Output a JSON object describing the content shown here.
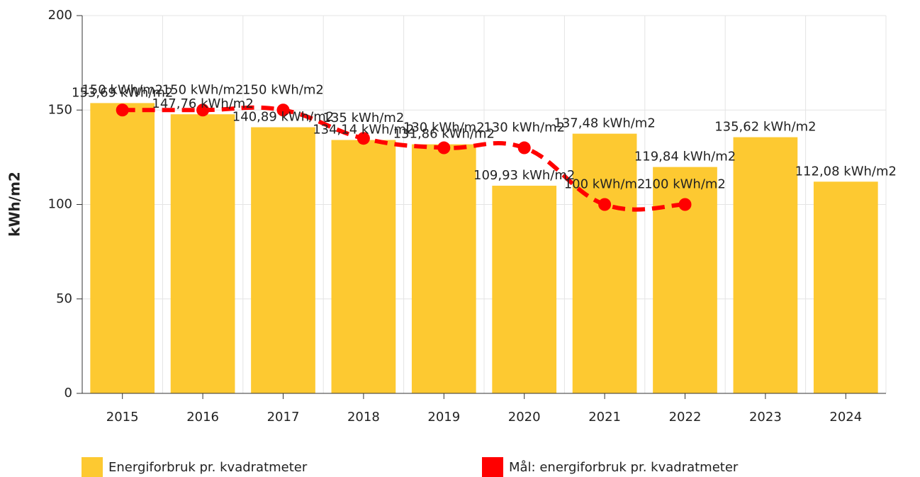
{
  "chart_data": {
    "type": "bar",
    "y_label": "kWh/m2",
    "categories": [
      "2015",
      "2016",
      "2017",
      "2018",
      "2019",
      "2020",
      "2021",
      "2022",
      "2023",
      "2024"
    ],
    "series": [
      {
        "name": "Energiforbruk pr. kvadratmeter",
        "type": "bar",
        "color": "#fdc931",
        "values": [
          153.69,
          147.76,
          140.89,
          134.14,
          131.86,
          109.93,
          137.48,
          119.84,
          135.62,
          112.08
        ],
        "value_labels": [
          "153,69 kWh/m2",
          "147,76 kWh/m2",
          "140,89 kWh/m2",
          "134,14 kWh/m2",
          "131,86 kWh/m2",
          "109,93 kWh/m2",
          "137,48 kWh/m2",
          "119,84 kWh/m2",
          "135,62 kWh/m2",
          "112,08 kWh/m2"
        ]
      },
      {
        "name": "Mål: energiforbruk pr. kvadratmeter",
        "type": "line",
        "color": "#ff0000",
        "values": [
          150,
          150,
          150,
          135,
          130,
          130,
          100,
          100,
          null,
          null
        ],
        "value_labels": [
          "150 kWh/m2",
          "150 kWh/m2",
          "150 kWh/m2",
          "135 kWh/m2",
          "130 kWh/m2",
          "130 kWh/m2",
          "100 kWh/m2",
          "100 kWh/m2",
          null,
          null
        ]
      }
    ],
    "ylim": [
      0,
      200
    ],
    "yticks": [
      0,
      50,
      100,
      150,
      200
    ],
    "grid": true,
    "legend": "bottom"
  }
}
